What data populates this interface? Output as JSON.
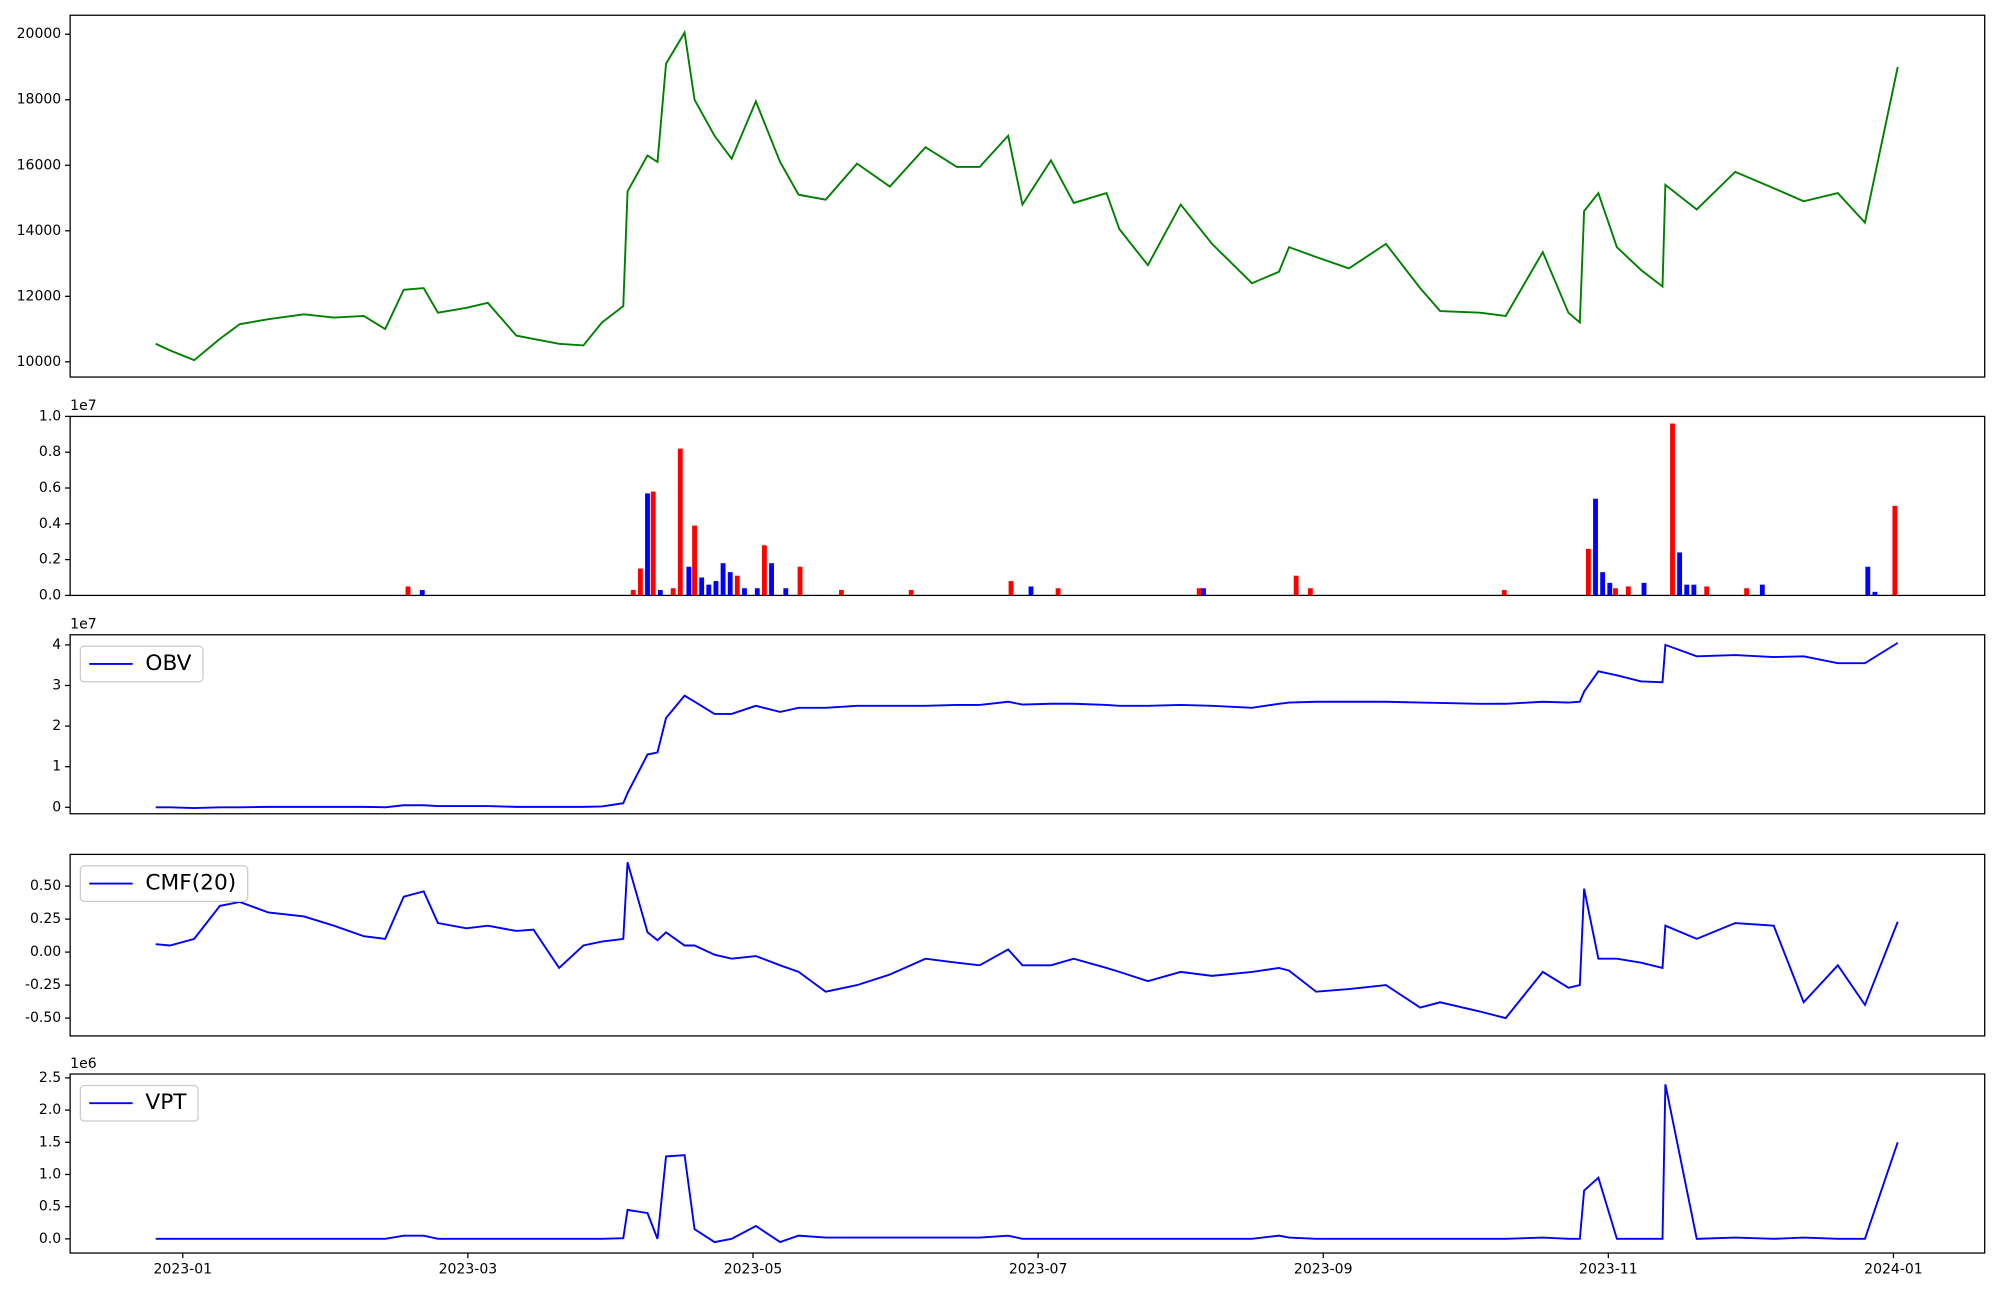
{
  "chart_data": [
    {
      "type": "line",
      "xlim": [
        -0.79,
        12.64
      ],
      "ylim": [
        9535,
        20580
      ],
      "yticks": [
        10000,
        12000,
        14000,
        16000,
        18000,
        20000
      ],
      "x": [
        -0.19,
        -0.09,
        0.08,
        0.26,
        0.4,
        0.6,
        0.85,
        1.06,
        1.27,
        1.42,
        1.55,
        1.69,
        1.79,
        1.99,
        2.14,
        2.34,
        2.46,
        2.64,
        2.81,
        2.94,
        3.09,
        3.12,
        3.26,
        3.33,
        3.39,
        3.52,
        3.59,
        3.73,
        3.85,
        4.02,
        4.19,
        4.32,
        4.51,
        4.73,
        4.96,
        5.21,
        5.43,
        5.59,
        5.79,
        5.89,
        6.09,
        6.25,
        6.48,
        6.57,
        6.77,
        7.0,
        7.22,
        7.5,
        7.69,
        7.76,
        7.95,
        8.18,
        8.44,
        8.68,
        8.82,
        9.1,
        9.28,
        9.54,
        9.72,
        9.8,
        9.83,
        9.93,
        10.06,
        10.23,
        10.38,
        10.4,
        10.62,
        10.89,
        11.16,
        11.37,
        11.61,
        11.8,
        12.03
      ],
      "series": [
        {
          "color": "#008000",
          "values": [
            10550,
            10350,
            10050,
            10700,
            11150,
            11300,
            11450,
            11350,
            11400,
            11000,
            12200,
            12250,
            11500,
            11650,
            11800,
            10800,
            10700,
            10550,
            10500,
            11200,
            11700,
            15200,
            16300,
            16100,
            19100,
            20050,
            18000,
            16900,
            16200,
            17950,
            16100,
            15100,
            14950,
            16050,
            15350,
            16550,
            15950,
            15950,
            16900,
            14800,
            16150,
            14850,
            15150,
            14050,
            12950,
            14800,
            13600,
            12400,
            12750,
            13500,
            13200,
            12850,
            13600,
            12250,
            11550,
            11500,
            11400,
            13350,
            11500,
            11200,
            14600,
            15150,
            13500,
            12800,
            12300,
            15400,
            14650,
            15800,
            15300,
            14900,
            15150,
            14250,
            19000
          ]
        }
      ]
    },
    {
      "type": "bar",
      "xlim": [
        -0.79,
        12.64
      ],
      "ylim": [
        0,
        1.0
      ],
      "offset": "1e7",
      "yticks": [
        {
          "value": 0,
          "label": "0.0"
        },
        0.2,
        0.4,
        0.6,
        0.8,
        {
          "value": 1.0,
          "label": "1.0"
        }
      ],
      "series": [
        {
          "color": "#ff0000",
          "x": [
            1.58,
            3.49,
            3.3,
            3.21,
            3.59,
            4.08,
            4.33,
            3.89,
            5.81,
            6.14,
            7.81,
            7.91,
            7.13,
            9.86,
            10.45,
            10.69,
            10.97,
            12.01,
            10.05,
            10.14,
            3.16,
            3.44,
            4.62,
            5.11,
            9.27
          ],
          "values": [
            0.05,
            0.82,
            0.58,
            0.15,
            0.39,
            0.28,
            0.16,
            0.11,
            0.08,
            0.04,
            0.11,
            0.04,
            0.04,
            0.26,
            0.96,
            0.05,
            0.04,
            0.5,
            0.04,
            0.05,
            0.03,
            0.04,
            0.03,
            0.03,
            0.03
          ]
        },
        {
          "color": "#0000ff",
          "x": [
            3.26,
            3.55,
            3.64,
            3.69,
            3.74,
            3.79,
            3.84,
            3.94,
            4.03,
            4.13,
            4.23,
            5.95,
            9.91,
            9.96,
            10.01,
            10.25,
            10.5,
            10.55,
            10.6,
            11.08,
            11.82,
            3.35,
            1.68,
            7.16,
            11.87
          ],
          "values": [
            0.57,
            0.16,
            0.1,
            0.06,
            0.08,
            0.18,
            0.13,
            0.04,
            0.04,
            0.18,
            0.04,
            0.05,
            0.54,
            0.13,
            0.07,
            0.07,
            0.24,
            0.06,
            0.06,
            0.06,
            0.16,
            0.03,
            0.03,
            0.04,
            0.02
          ]
        }
      ]
    },
    {
      "type": "line",
      "xlim": [
        -0.79,
        12.64
      ],
      "ylim": [
        -0.16,
        4.25
      ],
      "yticks": [
        0,
        1,
        2,
        3,
        4
      ],
      "offset": "1e7",
      "legend": "upper left",
      "x": [
        -0.19,
        -0.09,
        0.08,
        0.26,
        0.4,
        0.6,
        0.85,
        1.06,
        1.27,
        1.42,
        1.55,
        1.69,
        1.79,
        1.99,
        2.14,
        2.34,
        2.46,
        2.64,
        2.81,
        2.94,
        3.09,
        3.12,
        3.26,
        3.33,
        3.39,
        3.52,
        3.59,
        3.73,
        3.85,
        4.02,
        4.19,
        4.32,
        4.51,
        4.73,
        4.96,
        5.21,
        5.43,
        5.59,
        5.79,
        5.89,
        6.09,
        6.25,
        6.48,
        6.57,
        6.77,
        7.0,
        7.22,
        7.5,
        7.69,
        7.76,
        7.95,
        8.18,
        8.44,
        8.68,
        8.82,
        9.1,
        9.28,
        9.54,
        9.72,
        9.8,
        9.83,
        9.93,
        10.06,
        10.23,
        10.38,
        10.4,
        10.62,
        10.89,
        11.16,
        11.37,
        11.61,
        11.8,
        12.03
      ],
      "series": [
        {
          "name": "OBV",
          "color": "#0000ff",
          "values": [
            0,
            0,
            -0.02,
            0,
            0,
            0.01,
            0.01,
            0.01,
            0.01,
            0,
            0.05,
            0.05,
            0.03,
            0.03,
            0.03,
            0.01,
            0.01,
            0.01,
            0.01,
            0.02,
            0.1,
            0.35,
            1.3,
            1.35,
            2.2,
            2.75,
            2.6,
            2.3,
            2.3,
            2.5,
            2.35,
            2.45,
            2.45,
            2.5,
            2.5,
            2.5,
            2.52,
            2.52,
            2.6,
            2.53,
            2.55,
            2.55,
            2.52,
            2.5,
            2.5,
            2.52,
            2.5,
            2.45,
            2.55,
            2.58,
            2.6,
            2.6,
            2.6,
            2.58,
            2.57,
            2.55,
            2.55,
            2.6,
            2.58,
            2.6,
            2.85,
            3.35,
            3.25,
            3.1,
            3.08,
            4.0,
            3.72,
            3.75,
            3.7,
            3.72,
            3.55,
            3.55,
            4.05
          ]
        }
      ]
    },
    {
      "type": "line",
      "xlim": [
        -0.79,
        12.64
      ],
      "ylim": [
        -0.635,
        0.74
      ],
      "legend": "upper left",
      "yticks": [
        {
          "value": -0.5,
          "label": "-0.50"
        },
        {
          "value": -0.25,
          "label": "-0.25"
        },
        {
          "value": 0,
          "label": "0.00"
        },
        0.25,
        {
          "value": 0.5,
          "label": "0.50"
        }
      ],
      "x": [
        -0.19,
        -0.09,
        0.08,
        0.26,
        0.4,
        0.6,
        0.85,
        1.06,
        1.27,
        1.42,
        1.55,
        1.69,
        1.79,
        1.99,
        2.14,
        2.34,
        2.46,
        2.64,
        2.81,
        2.94,
        3.09,
        3.12,
        3.26,
        3.33,
        3.39,
        3.52,
        3.59,
        3.73,
        3.85,
        4.02,
        4.19,
        4.32,
        4.51,
        4.73,
        4.96,
        5.21,
        5.43,
        5.59,
        5.79,
        5.89,
        6.09,
        6.25,
        6.48,
        6.57,
        6.77,
        7.0,
        7.22,
        7.5,
        7.69,
        7.76,
        7.95,
        8.18,
        8.44,
        8.68,
        8.82,
        9.1,
        9.28,
        9.54,
        9.72,
        9.8,
        9.83,
        9.93,
        10.06,
        10.23,
        10.38,
        10.4,
        10.62,
        10.89,
        11.16,
        11.37,
        11.61,
        11.8,
        12.03
      ],
      "series": [
        {
          "name": "CMF(20)",
          "color": "#0000ff",
          "values": [
            0.06,
            0.05,
            0.1,
            0.35,
            0.38,
            0.3,
            0.27,
            0.2,
            0.12,
            0.1,
            0.42,
            0.46,
            0.22,
            0.18,
            0.2,
            0.16,
            0.17,
            -0.12,
            0.05,
            0.08,
            0.1,
            0.68,
            0.15,
            0.09,
            0.15,
            0.05,
            0.05,
            -0.02,
            -0.05,
            -0.03,
            -0.1,
            -0.15,
            -0.3,
            -0.25,
            -0.17,
            -0.05,
            -0.08,
            -0.1,
            0.02,
            -0.1,
            -0.1,
            -0.05,
            -0.12,
            -0.15,
            -0.22,
            -0.15,
            -0.18,
            -0.15,
            -0.12,
            -0.14,
            -0.3,
            -0.28,
            -0.25,
            -0.42,
            -0.38,
            -0.45,
            -0.5,
            -0.15,
            -0.27,
            -0.25,
            0.48,
            -0.05,
            -0.05,
            -0.08,
            -0.12,
            0.2,
            0.1,
            0.22,
            0.2,
            -0.38,
            -0.1,
            -0.4,
            0.23
          ]
        }
      ]
    },
    {
      "type": "line",
      "xlim": [
        -0.79,
        12.64
      ],
      "ylim": [
        -0.22,
        2.56
      ],
      "offset": "1e6",
      "legend": "upper left",
      "yticks": [
        {
          "value": 0,
          "label": "0.0"
        },
        0.5,
        {
          "value": 1.0,
          "label": "1.0"
        },
        1.5,
        {
          "value": 2.0,
          "label": "2.0"
        },
        2.5
      ],
      "xticks": [
        {
          "value": 0,
          "label": "2023-01"
        },
        {
          "value": 2,
          "label": "2023-03"
        },
        {
          "value": 4,
          "label": "2023-05"
        },
        {
          "value": 6,
          "label": "2023-07"
        },
        {
          "value": 8,
          "label": "2023-09"
        },
        {
          "value": 10,
          "label": "2023-11"
        },
        {
          "value": 12,
          "label": "2024-01"
        }
      ],
      "x": [
        -0.19,
        -0.09,
        0.08,
        0.26,
        0.4,
        0.6,
        0.85,
        1.06,
        1.27,
        1.42,
        1.55,
        1.69,
        1.79,
        1.99,
        2.14,
        2.34,
        2.46,
        2.64,
        2.81,
        2.94,
        3.09,
        3.12,
        3.26,
        3.33,
        3.39,
        3.52,
        3.59,
        3.73,
        3.85,
        4.02,
        4.19,
        4.32,
        4.51,
        4.73,
        4.96,
        5.21,
        5.43,
        5.59,
        5.79,
        5.89,
        6.09,
        6.25,
        6.48,
        6.57,
        6.77,
        7.0,
        7.22,
        7.5,
        7.69,
        7.76,
        7.95,
        8.18,
        8.44,
        8.68,
        8.82,
        9.1,
        9.28,
        9.54,
        9.72,
        9.8,
        9.83,
        9.93,
        10.06,
        10.23,
        10.38,
        10.4,
        10.62,
        10.89,
        11.16,
        11.37,
        11.61,
        11.8,
        12.03
      ],
      "series": [
        {
          "name": "VPT",
          "color": "#0000ff",
          "values": [
            0,
            0,
            0,
            0,
            0,
            0,
            0,
            0,
            0,
            0,
            0.05,
            0.05,
            0,
            0,
            0,
            0,
            0,
            0,
            0,
            0,
            0.01,
            0.45,
            0.4,
            0,
            1.28,
            1.3,
            0.15,
            -0.05,
            0,
            0.2,
            -0.05,
            0.05,
            0.02,
            0.02,
            0.02,
            0.02,
            0.02,
            0.02,
            0.05,
            0,
            0,
            0,
            0,
            0,
            0,
            0,
            0,
            0,
            0.05,
            0.02,
            0,
            0,
            0,
            0,
            0,
            0,
            0,
            0.02,
            0,
            0,
            0.75,
            0.95,
            0,
            0,
            0,
            2.4,
            0,
            0.02,
            0,
            0.02,
            0,
            0,
            1.5
          ]
        }
      ]
    }
  ]
}
